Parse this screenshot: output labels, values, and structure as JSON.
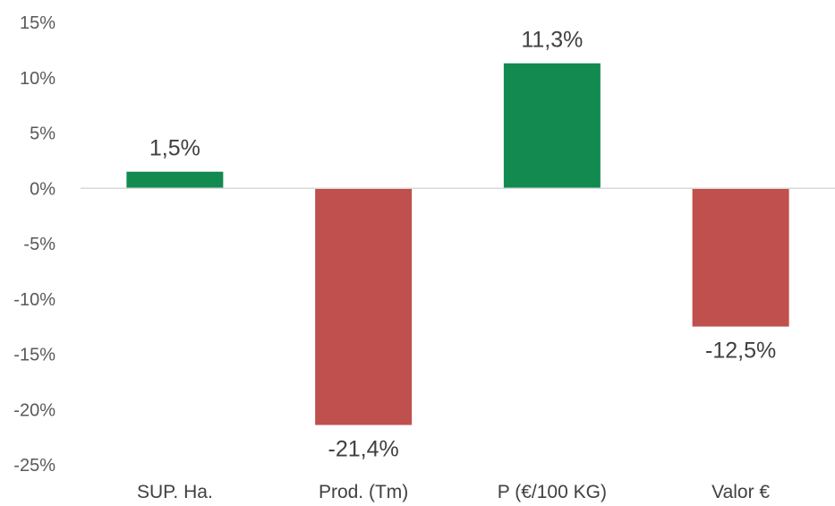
{
  "chart_data": {
    "type": "bar",
    "categories": [
      "SUP. Ha.",
      "Prod. (Tm)",
      "P (€/100 KG)",
      "Valor €"
    ],
    "values": [
      1.5,
      -21.4,
      11.3,
      -12.5
    ],
    "data_labels": [
      "1,5%",
      "-21,4%",
      "11,3%",
      "-12,5%"
    ],
    "ylim": [
      -25,
      15
    ],
    "yticks": [
      15,
      10,
      5,
      0,
      -5,
      -10,
      -15,
      -20,
      -25
    ],
    "ytick_labels": [
      "15%",
      "10%",
      "5%",
      "0%",
      "-5%",
      "-10%",
      "-15%",
      "-20%",
      "-25%"
    ],
    "grid": false,
    "legend": "none",
    "colors": {
      "positive": "#138a50",
      "negative": "#c0504d",
      "axis": "#d9d9d9"
    }
  }
}
